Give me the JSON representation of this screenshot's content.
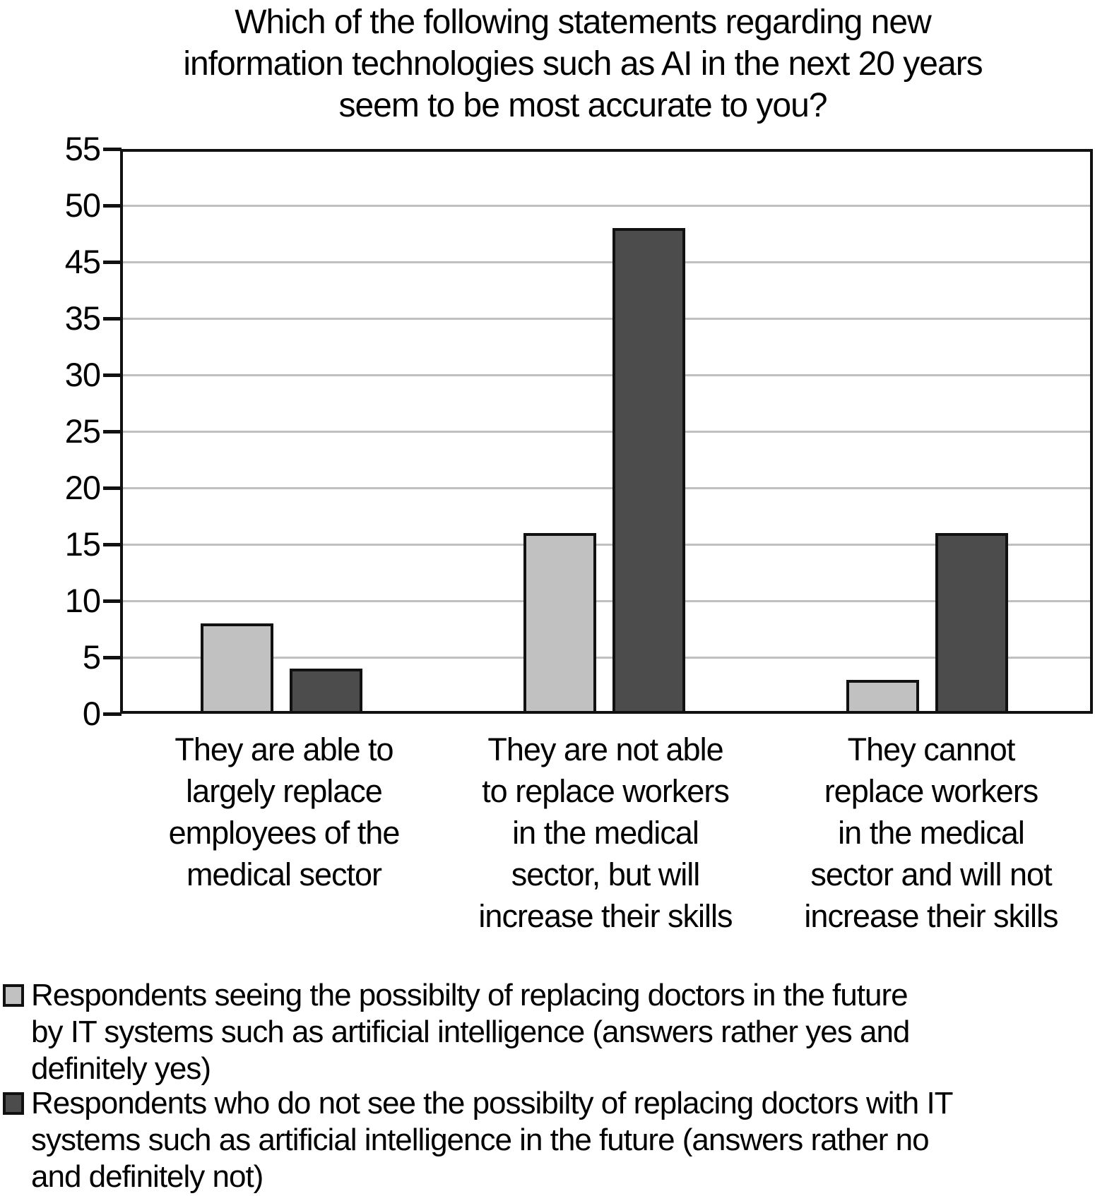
{
  "figure": {
    "title": "Which of the following statements regarding new information technologies such as AI in the next 20 years seem to be most accurate to you?",
    "title_lines": [
      "Which of the following statements regarding new",
      "information technologies such as AI in the next 20 years",
      "seem to be most accurate to you?"
    ]
  },
  "chart_data": {
    "type": "bar",
    "title": "Which of the following statements regarding new information technologies such as AI in the next 20 years seem to be most accurate to you?",
    "categories": [
      "They are able to largely replace employees of the medical sector",
      "They are not able to replace workers in the medical sector, but will increase their skills",
      "They cannot replace workers in the medical sector and will not increase their skills"
    ],
    "category_label_lines": [
      [
        "They are able to",
        "largely replace",
        "employees of the",
        "medical sector"
      ],
      [
        "They are not able",
        "to replace workers",
        "in the medical",
        "sector, but will",
        "increase their skills"
      ],
      [
        "They cannot",
        "replace workers",
        "in the medical",
        "sector and will not",
        "increase their skills"
      ]
    ],
    "series": [
      {
        "name": "Respondents seeing the possibilty of replacing doctors in the future by IT systems such as artificial intelligence (answers rather yes and definitely yes)",
        "color": "#c1c1c1",
        "values": [
          8,
          16,
          3
        ]
      },
      {
        "name": "Respondents who do not see the possibilty of replacing doctors with IT systems such as artificial intelligence in the future (answers rather no and definitely not)",
        "color": "#4c4c4c",
        "values": [
          4,
          48,
          16
        ]
      }
    ],
    "xlabel": "",
    "ylabel": "",
    "ylim": [
      0,
      55
    ],
    "y_tick_labels_top_to_bottom": [
      "55",
      "50",
      "45",
      "35",
      "30",
      "25",
      "20",
      "15",
      "10",
      "5",
      "0"
    ],
    "y_axis_note": "ticks evenly spaced; label 40 is missing between 45 and 35 as in original",
    "grid": "horizontal gridlines at each tick",
    "legend_position": "bottom-left"
  },
  "legend": {
    "items": [
      {
        "swatch_color": "#c1c1c1",
        "lines": [
          "Respondents seeing the possibilty of replacing doctors in the future",
          "by IT systems such as artificial intelligence (answers rather yes and",
          "definitely yes)"
        ]
      },
      {
        "swatch_color": "#4c4c4c",
        "lines": [
          "Respondents who do not see the possibilty of replacing doctors with IT",
          "systems such as artificial intelligence in the future (answers rather no",
          "and definitely not)"
        ]
      }
    ]
  },
  "colors": {
    "bar_light": "#c1c1c1",
    "bar_dark": "#4c4c4c",
    "bar_border": "#111111",
    "gridline": "#c0c0c0",
    "axis": "#111111",
    "text": "#000000",
    "background": "#ffffff"
  }
}
